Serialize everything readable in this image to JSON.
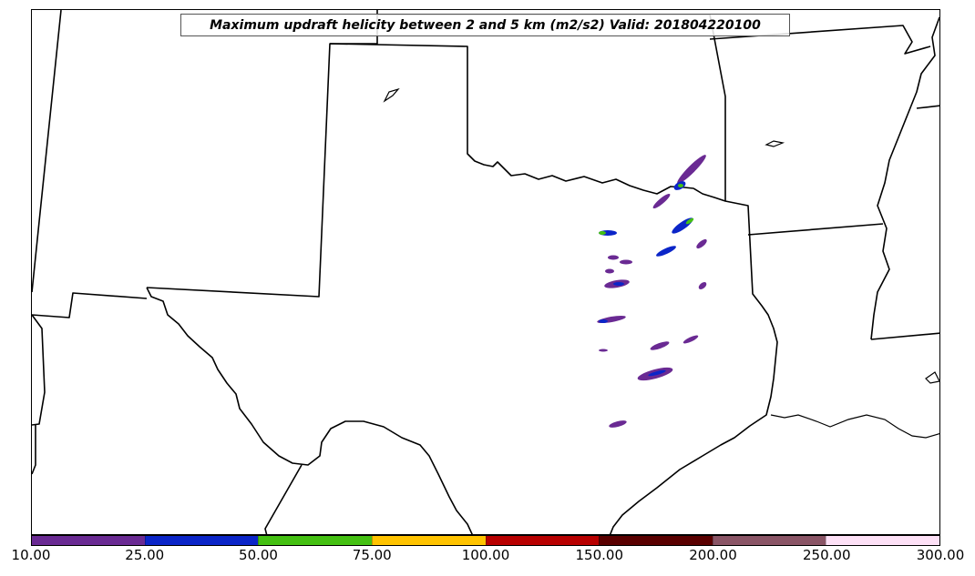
{
  "title": "Maximum updraft helicity between 2 and 5 km (m2/s2) Valid: 201804220100",
  "colorbar": {
    "ticks": [
      "10.00",
      "25.00",
      "50.00",
      "75.00",
      "100.00",
      "150.00",
      "200.00",
      "250.00",
      "300.00"
    ],
    "colors": [
      "#6a2a93",
      "#0b25c8",
      "#44c012",
      "#ffc300",
      "#b80000",
      "#5a0000",
      "#8a5566",
      "#fde0f6"
    ]
  }
}
